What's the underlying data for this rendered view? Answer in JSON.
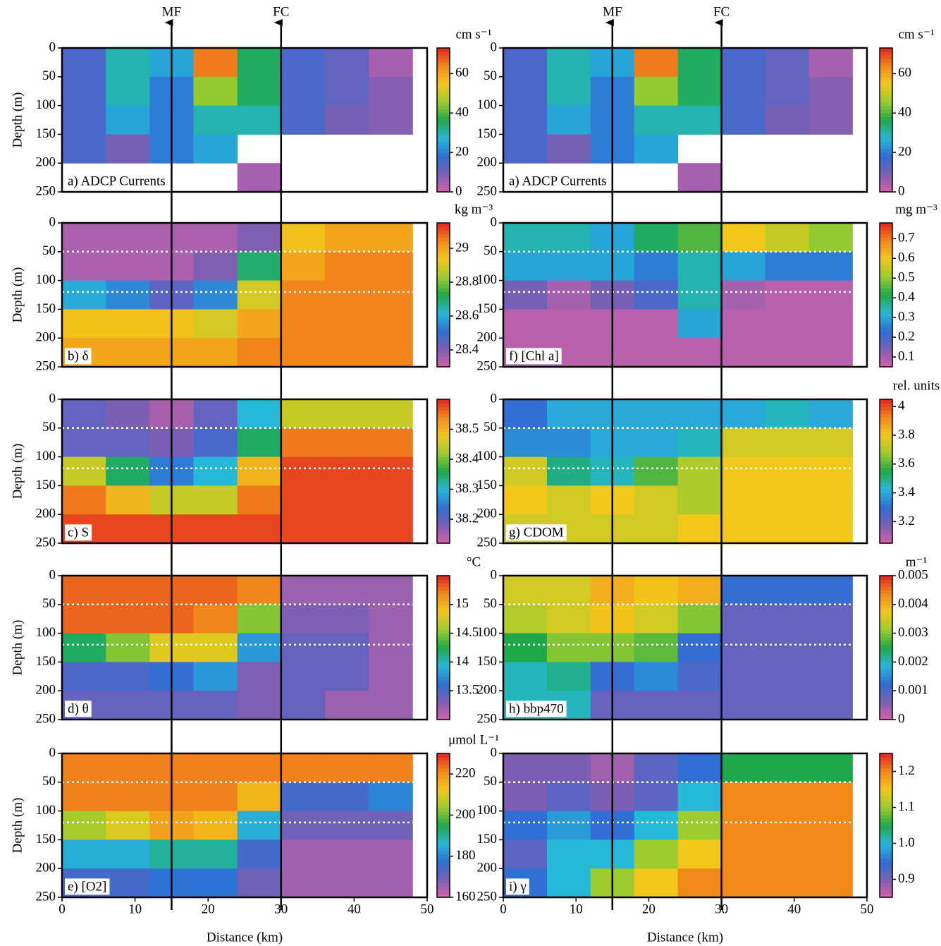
{
  "chart_data": [
    {
      "type": "heatmap",
      "panel_label": "a) ADCP Currents",
      "ylabel": "Depth (m)",
      "xlim": [
        0,
        50
      ],
      "ylim": [
        0,
        250
      ],
      "y_inverted": true,
      "yticks": [
        0,
        50,
        100,
        150,
        200,
        250
      ],
      "markers": [
        {
          "label": "MF",
          "x": 15
        },
        {
          "label": "FC",
          "x": 30
        }
      ],
      "x": [
        3,
        9,
        15,
        21,
        27,
        33,
        39,
        45
      ],
      "y": [
        25,
        75,
        125,
        175,
        225
      ],
      "z": [
        [
          15,
          30,
          25,
          65,
          35,
          15,
          12,
          5
        ],
        [
          15,
          30,
          20,
          45,
          35,
          15,
          12,
          8
        ],
        [
          15,
          25,
          20,
          30,
          30,
          15,
          10,
          8
        ],
        [
          15,
          10,
          20,
          25,
          null,
          null,
          null,
          null
        ],
        [
          null,
          null,
          null,
          null,
          5,
          null,
          null,
          null
        ]
      ],
      "colorbar_label": "cm s⁻¹",
      "clim": [
        0,
        73
      ],
      "cticks": [
        0,
        20,
        40,
        60
      ]
    },
    {
      "type": "heatmap",
      "panel_label": "b) δ",
      "ylabel": "Depth (m)",
      "xlim": [
        0,
        50
      ],
      "ylim": [
        0,
        250
      ],
      "y_inverted": true,
      "yticks": [
        0,
        50,
        100,
        150,
        200,
        250
      ],
      "reference_depths": [
        50,
        120
      ],
      "x": [
        3,
        9,
        15,
        21,
        27,
        33,
        39,
        45
      ],
      "y": [
        25,
        75,
        125,
        175,
        225
      ],
      "z": [
        [
          28.35,
          28.35,
          28.35,
          28.35,
          28.4,
          28.95,
          29.0,
          29.0
        ],
        [
          28.35,
          28.35,
          28.35,
          28.4,
          28.7,
          29.0,
          29.05,
          29.05
        ],
        [
          28.6,
          28.55,
          28.45,
          28.55,
          28.9,
          29.05,
          29.05,
          29.05
        ],
        [
          28.95,
          28.95,
          28.95,
          28.9,
          29.0,
          29.05,
          29.05,
          29.05
        ],
        [
          29.0,
          29.0,
          29.0,
          29.0,
          29.05,
          29.05,
          29.05,
          29.05
        ]
      ],
      "colorbar_label": "kg m⁻³",
      "clim": [
        28.3,
        29.15
      ],
      "cticks": [
        28.4,
        28.6,
        28.8,
        29
      ]
    },
    {
      "type": "heatmap",
      "panel_label": "c) S",
      "ylabel": "Depth (m)",
      "xlim": [
        0,
        50
      ],
      "ylim": [
        0,
        250
      ],
      "y_inverted": true,
      "yticks": [
        0,
        50,
        100,
        150,
        200,
        250
      ],
      "reference_depths": [
        50,
        120
      ],
      "x": [
        3,
        9,
        15,
        21,
        27,
        33,
        39,
        45
      ],
      "y": [
        25,
        75,
        125,
        175,
        225
      ],
      "z": [
        [
          38.2,
          38.18,
          38.15,
          38.2,
          38.3,
          38.45,
          38.45,
          38.45
        ],
        [
          38.2,
          38.2,
          38.18,
          38.22,
          38.35,
          38.55,
          38.55,
          38.55
        ],
        [
          38.45,
          38.35,
          38.25,
          38.3,
          38.5,
          38.58,
          38.58,
          38.58
        ],
        [
          38.55,
          38.5,
          38.45,
          38.45,
          38.55,
          38.58,
          38.58,
          38.58
        ],
        [
          38.58,
          38.58,
          38.58,
          38.58,
          38.58,
          38.58,
          38.58,
          38.58
        ]
      ],
      "colorbar_label": "",
      "clim": [
        38.12,
        38.6
      ],
      "cticks": [
        38.2,
        38.3,
        38.4,
        38.5
      ]
    },
    {
      "type": "heatmap",
      "panel_label": "d) θ",
      "ylabel": "Depth (m)",
      "xlim": [
        0,
        50
      ],
      "ylim": [
        0,
        250
      ],
      "y_inverted": true,
      "yticks": [
        0,
        50,
        100,
        150,
        200,
        250
      ],
      "reference_depths": [
        50,
        120
      ],
      "x": [
        3,
        9,
        15,
        21,
        27,
        33,
        39,
        45
      ],
      "y": [
        25,
        75,
        125,
        175,
        225
      ],
      "z": [
        [
          15.3,
          15.3,
          15.3,
          15.3,
          15.2,
          13.2,
          13.2,
          13.2
        ],
        [
          15.3,
          15.3,
          15.3,
          15.2,
          14.5,
          13.3,
          13.3,
          13.2
        ],
        [
          14.2,
          14.5,
          14.8,
          14.8,
          13.8,
          13.4,
          13.4,
          13.2
        ],
        [
          13.5,
          13.5,
          13.6,
          13.8,
          13.3,
          13.4,
          13.4,
          13.2
        ],
        [
          13.4,
          13.4,
          13.4,
          13.4,
          13.3,
          13.4,
          13.2,
          13.2
        ]
      ],
      "colorbar_label": "°C",
      "clim": [
        13.0,
        15.5
      ],
      "cticks": [
        13.5,
        14,
        14.5,
        15
      ]
    },
    {
      "type": "heatmap",
      "panel_label": "e) [O2]",
      "ylabel": "Depth (m)",
      "xlabel": "Distance (km)",
      "xlim": [
        0,
        50
      ],
      "ylim": [
        0,
        250
      ],
      "y_inverted": true,
      "xticks": [
        0,
        10,
        20,
        30,
        40,
        50
      ],
      "yticks": [
        0,
        50,
        100,
        150,
        200,
        250
      ],
      "reference_depths": [
        50,
        120
      ],
      "x": [
        3,
        9,
        15,
        21,
        27,
        33,
        39,
        45
      ],
      "y": [
        25,
        75,
        125,
        175,
        225
      ],
      "z": [
        [
          222,
          222,
          222,
          222,
          222,
          222,
          222,
          222
        ],
        [
          222,
          222,
          222,
          222,
          215,
          175,
          175,
          180
        ],
        [
          205,
          210,
          218,
          215,
          185,
          170,
          170,
          170
        ],
        [
          185,
          185,
          190,
          190,
          175,
          165,
          165,
          165
        ],
        [
          175,
          175,
          178,
          178,
          170,
          165,
          165,
          165
        ]
      ],
      "colorbar_label": "μmol L⁻¹",
      "clim": [
        160,
        230
      ],
      "cticks": [
        160,
        180,
        200,
        220
      ]
    },
    {
      "type": "heatmap",
      "panel_label": "a) ADCP Currents",
      "xlim": [
        0,
        50
      ],
      "ylim": [
        0,
        250
      ],
      "y_inverted": true,
      "yticks": [
        0,
        50,
        100,
        150,
        200,
        250
      ],
      "markers": [
        {
          "label": "MF",
          "x": 15
        },
        {
          "label": "FC",
          "x": 30
        }
      ],
      "x": [
        3,
        9,
        15,
        21,
        27,
        33,
        39,
        45
      ],
      "y": [
        25,
        75,
        125,
        175,
        225
      ],
      "z": [
        [
          15,
          30,
          25,
          65,
          35,
          15,
          12,
          5
        ],
        [
          15,
          30,
          20,
          45,
          35,
          15,
          12,
          8
        ],
        [
          15,
          25,
          20,
          30,
          30,
          15,
          10,
          8
        ],
        [
          15,
          10,
          20,
          25,
          null,
          null,
          null,
          null
        ],
        [
          null,
          null,
          null,
          null,
          5,
          null,
          null,
          null
        ]
      ],
      "colorbar_label": "cm s⁻¹",
      "clim": [
        0,
        73
      ],
      "cticks": [
        0,
        20,
        40,
        60
      ]
    },
    {
      "type": "heatmap",
      "panel_label": "f) [Chl a]",
      "xlim": [
        0,
        50
      ],
      "ylim": [
        0,
        250
      ],
      "y_inverted": true,
      "yticks": [
        0,
        50,
        100,
        150,
        200,
        250
      ],
      "reference_depths": [
        50,
        120
      ],
      "x": [
        3,
        9,
        15,
        21,
        27,
        33,
        39,
        45
      ],
      "y": [
        25,
        75,
        125,
        175,
        225
      ],
      "z": [
        [
          0.35,
          0.35,
          0.3,
          0.4,
          0.45,
          0.6,
          0.55,
          0.5
        ],
        [
          0.3,
          0.3,
          0.3,
          0.25,
          0.35,
          0.3,
          0.25,
          0.25
        ],
        [
          0.15,
          0.1,
          0.15,
          0.2,
          0.35,
          0.1,
          0.08,
          0.08
        ],
        [
          0.08,
          0.08,
          0.08,
          0.08,
          0.3,
          0.08,
          0.08,
          0.08
        ],
        [
          0.08,
          0.08,
          0.08,
          0.08,
          0.08,
          0.08,
          0.08,
          0.08
        ]
      ],
      "colorbar_label": "mg m⁻³",
      "clim": [
        0.05,
        0.78
      ],
      "cticks": [
        0.1,
        0.2,
        0.3,
        0.4,
        0.5,
        0.6,
        0.7
      ]
    },
    {
      "type": "heatmap",
      "panel_label": "g) CDOM",
      "xlim": [
        0,
        50
      ],
      "ylim": [
        0,
        250
      ],
      "y_inverted": true,
      "yticks": [
        0,
        50,
        100,
        150,
        200,
        250
      ],
      "reference_depths": [
        50,
        120
      ],
      "x": [
        3,
        9,
        15,
        21,
        27,
        33,
        39,
        45
      ],
      "y": [
        25,
        75,
        125,
        175,
        225
      ],
      "z": [
        [
          3.3,
          3.4,
          3.4,
          3.4,
          3.4,
          3.4,
          3.45,
          3.4
        ],
        [
          3.35,
          3.35,
          3.4,
          3.4,
          3.45,
          3.75,
          3.75,
          3.75
        ],
        [
          3.75,
          3.5,
          3.45,
          3.6,
          3.7,
          3.8,
          3.8,
          3.8
        ],
        [
          3.8,
          3.75,
          3.8,
          3.75,
          3.7,
          3.8,
          3.8,
          3.8
        ],
        [
          3.75,
          3.75,
          3.75,
          3.75,
          3.8,
          3.8,
          3.8,
          3.8
        ]
      ],
      "colorbar_label": "rel. units",
      "clim": [
        3.05,
        4.05
      ],
      "cticks": [
        3.2,
        3.4,
        3.6,
        3.8,
        4
      ]
    },
    {
      "type": "heatmap",
      "panel_label": "h) bbp470",
      "xlim": [
        0,
        50
      ],
      "ylim": [
        0,
        250
      ],
      "y_inverted": true,
      "yticks": [
        0,
        50,
        100,
        150,
        200,
        250
      ],
      "reference_depths": [
        50,
        120
      ],
      "x": [
        3,
        9,
        15,
        21,
        27,
        33,
        39,
        45
      ],
      "y": [
        25,
        75,
        125,
        175,
        225
      ],
      "z": [
        [
          0.0035,
          0.0035,
          0.004,
          0.0038,
          0.004,
          0.0012,
          0.0012,
          0.0012
        ],
        [
          0.0033,
          0.0035,
          0.0038,
          0.0035,
          0.003,
          0.0008,
          0.0008,
          0.0008
        ],
        [
          0.0025,
          0.003,
          0.003,
          0.0028,
          0.0012,
          0.0008,
          0.0008,
          0.0008
        ],
        [
          0.002,
          0.0022,
          0.0012,
          0.0015,
          0.001,
          0.0008,
          0.0008,
          0.0008
        ],
        [
          0.002,
          0.002,
          0.0008,
          0.0008,
          0.0008,
          0.0008,
          0.0008,
          0.0008
        ]
      ],
      "colorbar_label": "m⁻¹",
      "clim": [
        0,
        0.005
      ],
      "cticks": [
        0,
        0.001,
        0.002,
        0.003,
        0.004,
        0.005
      ]
    },
    {
      "type": "heatmap",
      "panel_label": "i) γ",
      "xlabel": "Distance (km)",
      "xlim": [
        0,
        50
      ],
      "ylim": [
        0,
        250
      ],
      "y_inverted": true,
      "xticks": [
        0,
        10,
        20,
        30,
        40,
        50
      ],
      "yticks": [
        0,
        50,
        100,
        150,
        200,
        250
      ],
      "reference_depths": [
        50,
        120
      ],
      "x": [
        3,
        9,
        15,
        21,
        27,
        33,
        39,
        45
      ],
      "y": [
        25,
        75,
        125,
        175,
        225
      ],
      "z": [
        [
          0.9,
          0.9,
          0.88,
          0.92,
          0.95,
          1.05,
          1.05,
          1.05
        ],
        [
          0.9,
          0.92,
          0.9,
          0.92,
          1.0,
          1.2,
          1.2,
          1.2
        ],
        [
          0.95,
          0.98,
          0.95,
          1.0,
          1.1,
          1.2,
          1.2,
          1.2
        ],
        [
          0.92,
          1.0,
          1.0,
          1.1,
          1.15,
          1.2,
          1.2,
          1.2
        ],
        [
          0.95,
          1.0,
          1.1,
          1.15,
          1.2,
          1.2,
          1.2,
          1.2
        ]
      ],
      "colorbar_label": "",
      "clim": [
        0.85,
        1.25
      ],
      "cticks": [
        0.9,
        {
          "value": 1,
          "label": "1.0"
        },
        1.1,
        1.2
      ]
    }
  ]
}
